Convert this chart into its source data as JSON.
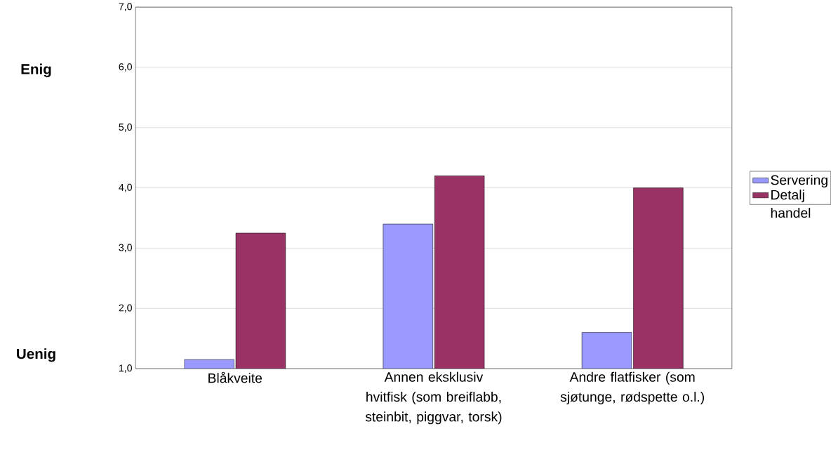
{
  "chart_data": {
    "type": "bar",
    "categories": [
      "Blåkveite",
      "Annen eksklusiv hvitfisk (som breiflabb, steinbit, piggvar, torsk)",
      "Andre flatfisker (som sjøtunge, rødspette o.l.)"
    ],
    "series": [
      {
        "name": "Servering",
        "color": "#9999ff",
        "values": [
          1.15,
          3.4,
          1.6
        ]
      },
      {
        "name": "Detalj handel",
        "color": "#993366",
        "values": [
          3.25,
          4.2,
          4.0
        ]
      }
    ],
    "ylim": [
      1,
      7
    ],
    "yticks": [
      {
        "value": 1,
        "label": "1,0"
      },
      {
        "value": 2,
        "label": "2,0"
      },
      {
        "value": 3,
        "label": "3,0"
      },
      {
        "value": 4,
        "label": "4,0"
      },
      {
        "value": 5,
        "label": "5,0"
      },
      {
        "value": 6,
        "label": "6,0"
      },
      {
        "value": 7,
        "label": "7,0"
      }
    ],
    "grid": "y",
    "legend": "right",
    "annotations": [
      "Enig",
      "Uenig"
    ]
  }
}
